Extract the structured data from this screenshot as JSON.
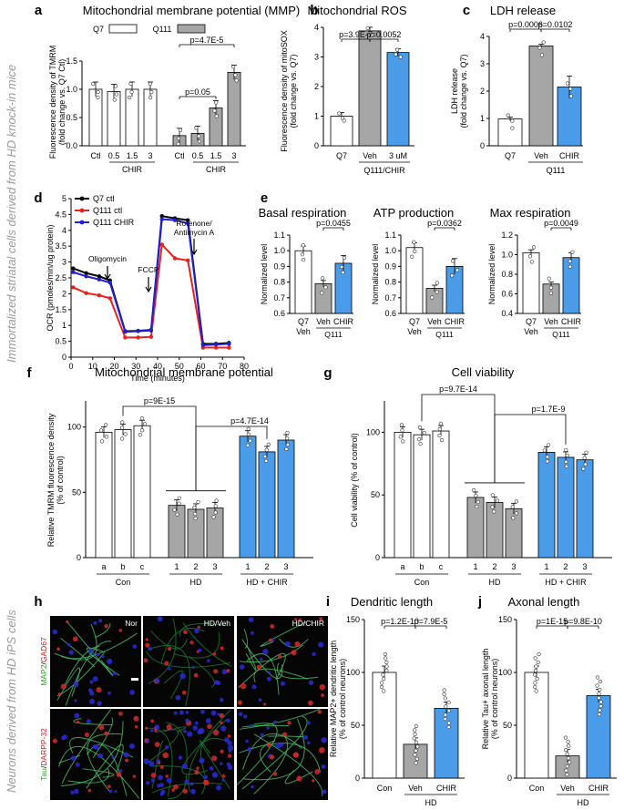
{
  "side_labels": {
    "top": "Immortalized striatal cells derived from HD knock-in mice",
    "bottom": "Neurons derived from HD iPS cells"
  },
  "colors": {
    "q7": "#ffffff",
    "q111": "#a6a6a6",
    "chir": "#4a9be8",
    "veh": "#a6a6a6",
    "ocr_q7": "#000000",
    "ocr_q111": "#e8201e",
    "ocr_chir": "#2020d0"
  },
  "chart_data": [
    {
      "id": "a",
      "panel_letter": "a",
      "type": "bar",
      "title": "Mitochondrial membrane potential (MMP)",
      "ylabel": "Fluorescence density of TMRM (fold change vs. Q7 Ctl)",
      "ylim": [
        0,
        1.5
      ],
      "yticks": [
        "0.0",
        "0.5",
        "1.0",
        "1.5"
      ],
      "legend": [
        {
          "name": "Q7",
          "color": "#ffffff"
        },
        {
          "name": "Q111",
          "color": "#a6a6a6"
        }
      ],
      "categories": [
        "Ctl",
        "0.5",
        "1.5",
        "3",
        "Ctl",
        "0.5",
        "1.5",
        "3"
      ],
      "groups": [
        {
          "label": "CHIR",
          "from": 1,
          "to": 3
        },
        {
          "label": "CHIR",
          "from": 5,
          "to": 7
        }
      ],
      "series": [
        {
          "name": "Q7",
          "values": [
            1.0,
            0.96,
            1.0,
            1.0,
            null,
            null,
            null,
            null
          ]
        },
        {
          "name": "Q111",
          "values": [
            null,
            null,
            null,
            null,
            0.18,
            0.22,
            0.67,
            1.3
          ]
        }
      ],
      "annotations": [
        "p=0.05",
        "p=4.7E-5"
      ]
    },
    {
      "id": "b",
      "panel_letter": "b",
      "type": "bar",
      "title": "Mitochondrial ROS",
      "ylabel": "Fluorescence density of mitoSOX (fold change vs. Q7)",
      "ylim": [
        0,
        4
      ],
      "yticks": [
        "0",
        "1",
        "2",
        "3",
        "4"
      ],
      "categories": [
        "Q7",
        "Veh",
        "3 uM"
      ],
      "groups": [
        {
          "label": "Q111/CHIR",
          "from": 1,
          "to": 2
        }
      ],
      "values": [
        1.0,
        3.88,
        3.15
      ],
      "annotations": [
        "p=3.9E-7",
        "p=0.0052"
      ]
    },
    {
      "id": "c",
      "panel_letter": "c",
      "type": "bar",
      "title": "LDH release",
      "ylabel": "LDH release (fold change vs. Q7)",
      "ylim": [
        0,
        4
      ],
      "yticks": [
        "0",
        "1",
        "2",
        "3",
        "4"
      ],
      "categories": [
        "Q7",
        "Veh",
        "CHIR"
      ],
      "groups": [
        {
          "label": "Q111",
          "from": 1,
          "to": 2
        }
      ],
      "values": [
        0.98,
        3.65,
        2.15
      ],
      "annotations": [
        "p=0.0006",
        "p=0.0102"
      ]
    },
    {
      "id": "d",
      "panel_letter": "d",
      "type": "line",
      "xlabel": "Time (minutes)",
      "ylabel": "OCR (pmoles/min/ug protein)",
      "xlim": [
        0,
        80
      ],
      "ylim": [
        0,
        5
      ],
      "xticks": [
        "0",
        "10",
        "20",
        "30",
        "40",
        "50",
        "60",
        "70",
        "80"
      ],
      "yticks": [
        "0",
        "0.5",
        "1",
        "1.5",
        "2",
        "2.5",
        "3",
        "3.5",
        "4",
        "4.5",
        "5"
      ],
      "x": [
        1,
        7,
        13,
        18,
        25,
        31,
        37,
        42,
        48,
        54,
        61,
        67,
        73
      ],
      "series": [
        {
          "name": "Q7 ctl",
          "values": [
            2.8,
            2.65,
            2.55,
            2.42,
            0.82,
            0.83,
            0.86,
            4.45,
            4.38,
            4.32,
            0.42,
            0.42,
            0.45
          ]
        },
        {
          "name": "Q111 ctl",
          "values": [
            2.2,
            2.02,
            1.95,
            1.86,
            0.62,
            0.62,
            0.64,
            3.55,
            3.12,
            3.05,
            0.3,
            0.3,
            0.3
          ]
        },
        {
          "name": "Q111 CHIR",
          "values": [
            2.68,
            2.55,
            2.45,
            2.35,
            0.8,
            0.82,
            0.84,
            4.35,
            4.32,
            4.22,
            0.38,
            0.4,
            0.42
          ]
        }
      ],
      "annotations": [
        "Oligomycin",
        "FCCP",
        "Rotenone/",
        "Antimycin A"
      ]
    },
    {
      "id": "e1",
      "panel_letter": "e",
      "type": "bar",
      "title": "Basal respiration",
      "ylabel": "Normalized level",
      "ylim": [
        0.6,
        1.1
      ],
      "yticks": [
        "0.6",
        "0.7",
        "0.8",
        "0.9",
        "1.0",
        "1.1"
      ],
      "categories": [
        "Q7",
        "Veh",
        "CHIR"
      ],
      "sublabels": [
        "Veh",
        "Q111"
      ],
      "values": [
        1.0,
        0.79,
        0.92
      ],
      "annotations": [
        "p=0.0455"
      ]
    },
    {
      "id": "e2",
      "type": "bar",
      "title": "ATP production",
      "ylabel": "Normalized level",
      "ylim": [
        0.6,
        1.1
      ],
      "yticks": [
        "0.6",
        "0.7",
        "0.8",
        "0.9",
        "1.0",
        "1.1"
      ],
      "categories": [
        "Q7",
        "Veh",
        "CHIR"
      ],
      "sublabels": [
        "Veh",
        "Q111"
      ],
      "values": [
        1.02,
        0.76,
        0.9
      ],
      "annotations": [
        "p=0.0362"
      ]
    },
    {
      "id": "e3",
      "type": "bar",
      "title": "Max respiration",
      "ylabel": "Normalized level",
      "ylim": [
        0.4,
        1.2
      ],
      "yticks": [
        "0.4",
        "0.6",
        "0.8",
        "1.0",
        "1.2"
      ],
      "categories": [
        "Q7",
        "Veh",
        "CHIR"
      ],
      "sublabels": [
        "Veh",
        "Q111"
      ],
      "values": [
        1.02,
        0.7,
        0.97
      ],
      "annotations": [
        "p=0.0049"
      ]
    },
    {
      "id": "f",
      "panel_letter": "f",
      "type": "bar",
      "title": "Mitochondrial membrane potential",
      "ylabel": "Relative TMRM fluorescence density (% of control)",
      "ylim": [
        0,
        120
      ],
      "yticks": [
        "0",
        "50",
        "100"
      ],
      "categories": [
        "a",
        "b",
        "c",
        "1",
        "2",
        "3",
        "1",
        "2",
        "3"
      ],
      "groups": [
        {
          "label": "Con",
          "from": 0,
          "to": 2
        },
        {
          "label": "HD",
          "from": 3,
          "to": 5
        },
        {
          "label": "HD + CHIR",
          "from": 6,
          "to": 8
        }
      ],
      "values": [
        96,
        98,
        101,
        40,
        37,
        38,
        93,
        81,
        90
      ],
      "annotations": [
        "p=9E-15",
        "p=4.7E-14"
      ]
    },
    {
      "id": "g",
      "panel_letter": "g",
      "type": "bar",
      "title": "Cell viability",
      "ylabel": "Cell viability (% of control)",
      "ylim": [
        0,
        125
      ],
      "yticks": [
        "0",
        "50",
        "100"
      ],
      "categories": [
        "a",
        "b",
        "c",
        "1",
        "2",
        "3",
        "1",
        "2",
        "3"
      ],
      "groups": [
        {
          "label": "Con",
          "from": 0,
          "to": 2
        },
        {
          "label": "HD",
          "from": 3,
          "to": 5
        },
        {
          "label": "HD + CHIR",
          "from": 6,
          "to": 8
        }
      ],
      "values": [
        100,
        98,
        101,
        48,
        44,
        39,
        84,
        80,
        78
      ],
      "annotations": [
        "p=9.7E-14",
        "p=1.7E-9"
      ]
    },
    {
      "id": "i",
      "panel_letter": "i",
      "type": "bar",
      "title": "Dendritic length",
      "ylabel": "Relative MAP2+ dendritic length (% of control neurons)",
      "ylim": [
        0,
        150
      ],
      "yticks": [
        "0",
        "50",
        "100",
        "150"
      ],
      "categories": [
        "Con",
        "Veh",
        "CHIR"
      ],
      "groups": [
        {
          "label": "HD",
          "from": 1,
          "to": 2
        }
      ],
      "values": [
        100,
        32,
        66
      ],
      "annotations": [
        "p=1.2E-10",
        "p=7.9E-5"
      ]
    },
    {
      "id": "j",
      "panel_letter": "j",
      "type": "bar",
      "title": "Axonal length",
      "ylabel": "Relative Tau+ axonal length (% of control neurons)",
      "ylim": [
        0,
        150
      ],
      "yticks": [
        "0",
        "50",
        "100",
        "150"
      ],
      "categories": [
        "Con",
        "Veh",
        "CHIR"
      ],
      "groups": [
        {
          "label": "HD",
          "from": 1,
          "to": 2
        }
      ],
      "values": [
        100,
        21,
        78
      ],
      "annotations": [
        "p=1E-15",
        "p=9.8E-10"
      ]
    }
  ],
  "micrographs": {
    "panel_letter": "h",
    "columns": [
      "Nor",
      "HD/Veh",
      "HD/CHIR"
    ],
    "rows": [
      {
        "label_green": "MAP2",
        "label_slash": "/",
        "label_red": "GAD67"
      },
      {
        "label_green": "Tau",
        "label_slash": "/",
        "label_red": "DARPP-32"
      }
    ]
  }
}
